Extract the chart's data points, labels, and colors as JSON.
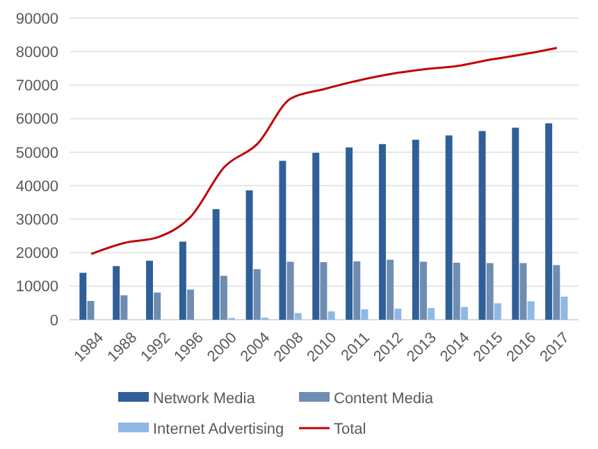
{
  "chart_data": {
    "type": "bar",
    "categories": [
      "1984",
      "1988",
      "1992",
      "1996",
      "2000",
      "2004",
      "2008",
      "2010",
      "2011",
      "2012",
      "2013",
      "2014",
      "2015",
      "2016",
      "2017"
    ],
    "series": [
      {
        "name": "Network Media",
        "color": "#2f5f98",
        "values": [
          14000,
          16000,
          17600,
          23300,
          33000,
          38600,
          47400,
          49800,
          51400,
          52400,
          53700,
          55000,
          56300,
          57300,
          58600
        ]
      },
      {
        "name": "Content Media",
        "color": "#6f8db1",
        "values": [
          5600,
          7300,
          8100,
          9000,
          13100,
          15100,
          17300,
          17200,
          17400,
          17900,
          17300,
          17000,
          16900,
          16900,
          16300
        ]
      },
      {
        "name": "Internet Advertising",
        "color": "#8fb8e6",
        "values": [
          null,
          null,
          null,
          null,
          500,
          600,
          2000,
          2500,
          3100,
          3300,
          3500,
          3800,
          4900,
          5500,
          6900
        ]
      },
      {
        "name": "Total",
        "type": "line",
        "color": "#c00000",
        "values": [
          19600,
          22900,
          24600,
          30800,
          45500,
          52500,
          66000,
          68800,
          71300,
          73300,
          74700,
          75700,
          77600,
          79200,
          81100
        ]
      }
    ],
    "ylim": [
      0,
      90000
    ],
    "yticks": [
      0,
      10000,
      20000,
      30000,
      40000,
      50000,
      60000,
      70000,
      80000,
      90000
    ],
    "grid": "y",
    "legend": "bottom"
  }
}
